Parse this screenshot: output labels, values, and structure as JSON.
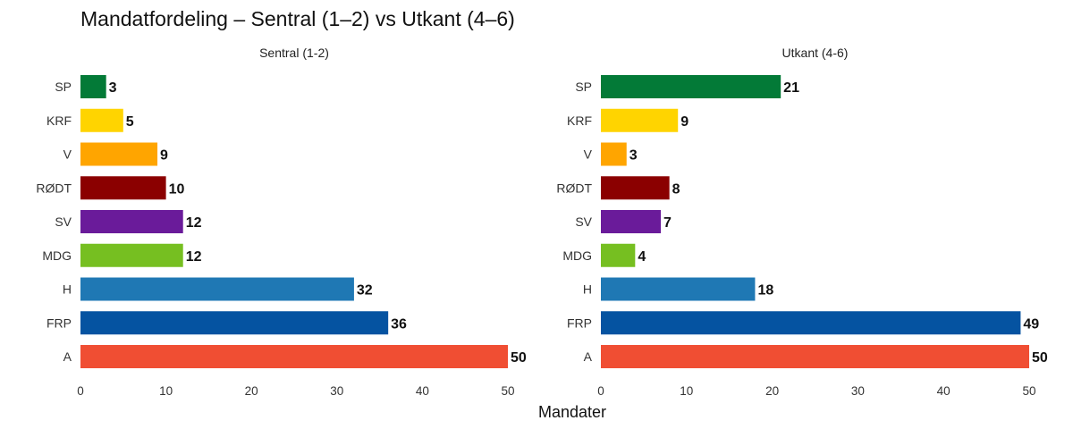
{
  "chart_data": {
    "type": "bar",
    "orientation": "horizontal",
    "title": "Mandatfordeling – Sentral (1–2) vs Utkant (4–6)",
    "xlabel": "Mandater",
    "xlim": [
      0,
      50
    ],
    "xticks": [
      "0",
      "10",
      "20",
      "30",
      "40",
      "50"
    ],
    "grid": false,
    "categories": [
      "SP",
      "KRF",
      "V",
      "RØDT",
      "SV",
      "MDG",
      "H",
      "FRP",
      "A"
    ],
    "colors": [
      "#037a37",
      "#ffd400",
      "#ffa500",
      "#8b0000",
      "#6a1b9a",
      "#76bf21",
      "#1f78b4",
      "#0553a1",
      "#f04e33"
    ],
    "panels": [
      {
        "name": "Sentral (1-2)",
        "values": [
          3,
          5,
          9,
          10,
          12,
          12,
          32,
          36,
          50
        ]
      },
      {
        "name": "Utkant (4-6)",
        "values": [
          21,
          9,
          3,
          8,
          7,
          4,
          18,
          49,
          50
        ]
      }
    ]
  }
}
